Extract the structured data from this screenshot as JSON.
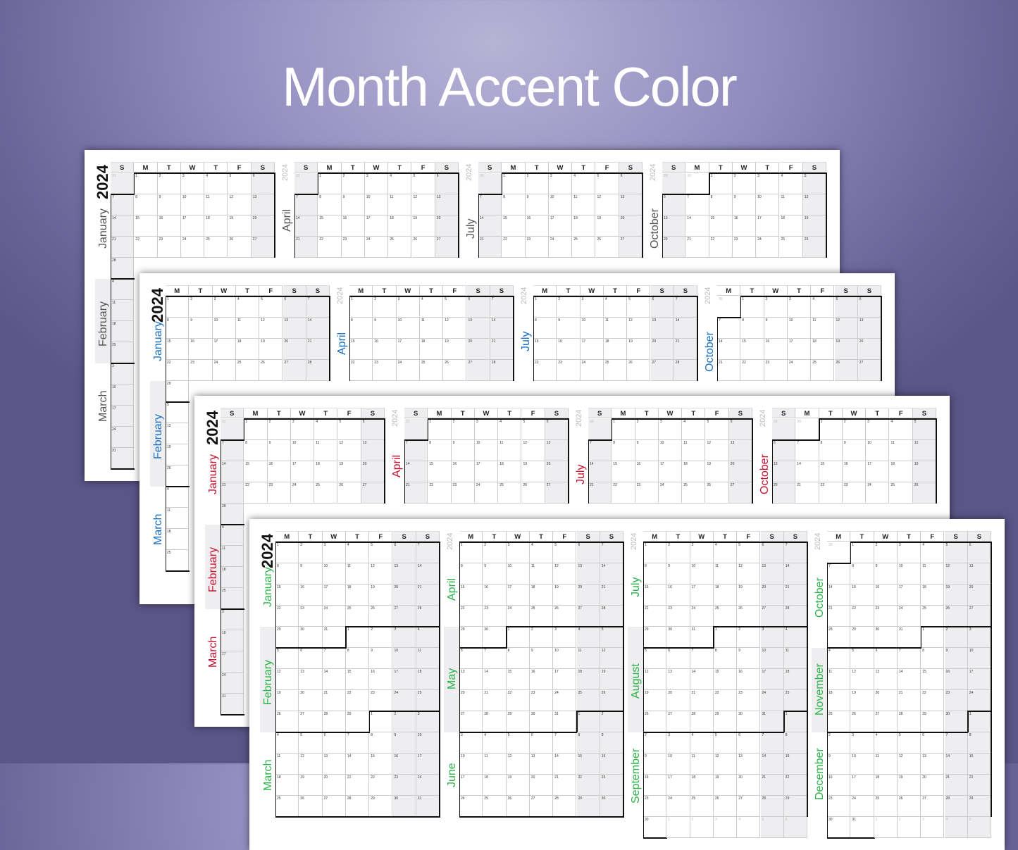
{
  "title": "Month Accent Color",
  "year": "2024",
  "months": [
    "January",
    "February",
    "March",
    "April",
    "May",
    "June",
    "July",
    "August",
    "September",
    "October",
    "November",
    "December"
  ],
  "weekdays_sunday_start": [
    "S",
    "M",
    "T",
    "W",
    "T",
    "F",
    "S"
  ],
  "weekdays_monday_start": [
    "M",
    "T",
    "W",
    "T",
    "F",
    "S",
    "S"
  ],
  "sheets": [
    {
      "accent": "#555555",
      "week_start": "sunday",
      "rows_per_quarter": "all"
    },
    {
      "accent": "#1a6fc0",
      "week_start": "monday",
      "rows_per_quarter": "all"
    },
    {
      "accent": "#c8102e",
      "week_start": "sunday",
      "rows_per_quarter": "all"
    },
    {
      "accent": "#2db34a",
      "week_start": "monday",
      "rows_per_quarter": "all"
    }
  ],
  "colors": {
    "weekend_shade": "#eeeef0",
    "month_border": "#111111"
  }
}
